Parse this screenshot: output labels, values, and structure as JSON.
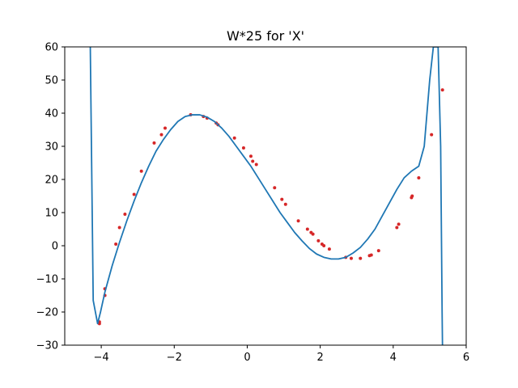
{
  "chart_data": {
    "type": "scatter",
    "title": "W*25 for 'X'",
    "xlabel": "",
    "ylabel": "",
    "xlim": [
      -5,
      6
    ],
    "ylim": [
      -30,
      60
    ],
    "xticks": [
      -4,
      -2,
      0,
      2,
      4,
      6
    ],
    "yticks": [
      -30,
      -20,
      -10,
      0,
      10,
      20,
      30,
      40,
      50,
      60
    ],
    "xtick_labels": [
      "−4",
      "−2",
      "0",
      "2",
      "4",
      "6"
    ],
    "ytick_labels": [
      "−30",
      "−20",
      "−10",
      "0",
      "10",
      "20",
      "30",
      "40",
      "50",
      "60"
    ],
    "grid": false,
    "legend": null,
    "series": [
      {
        "kind": "points",
        "color": "#d62728",
        "x": [
          -4.05,
          -4.05,
          -3.9,
          -3.9,
          -3.6,
          -3.5,
          -3.35,
          -3.1,
          -2.9,
          -2.55,
          -2.35,
          -2.25,
          -1.55,
          -1.2,
          -1.1,
          -0.85,
          -0.8,
          -0.35,
          -0.1,
          0.1,
          0.15,
          0.25,
          0.75,
          0.95,
          1.05,
          1.4,
          1.65,
          1.75,
          1.8,
          1.95,
          2.05,
          2.1,
          2.25,
          2.7,
          2.85,
          3.1,
          3.35,
          3.4,
          3.6,
          4.1,
          4.15,
          4.5,
          4.52,
          4.7,
          5.05,
          5.35
        ],
        "y": [
          -23,
          -23.5,
          -13,
          -15,
          0.5,
          5.5,
          9.5,
          15.5,
          22.5,
          31,
          33.5,
          35.5,
          39.5,
          39,
          38.5,
          37,
          36.5,
          32.5,
          29.5,
          27,
          25.5,
          24.5,
          17.5,
          14,
          12.5,
          7.5,
          5,
          4,
          3.5,
          1.5,
          0.5,
          0,
          -1,
          -3.5,
          -3.8,
          -3.8,
          -3,
          -2.8,
          -1.5,
          5.5,
          6.5,
          14.5,
          15,
          20.5,
          33.5,
          47
        ]
      },
      {
        "kind": "line",
        "color": "#1f77b4",
        "x": [
          -4.3,
          -4.22,
          -4.1,
          -4.02,
          -3.9,
          -3.7,
          -3.5,
          -3.3,
          -3.1,
          -2.9,
          -2.7,
          -2.5,
          -2.3,
          -2.1,
          -1.9,
          -1.7,
          -1.5,
          -1.3,
          -1.1,
          -0.9,
          -0.7,
          -0.5,
          -0.3,
          -0.1,
          0.1,
          0.3,
          0.5,
          0.7,
          0.9,
          1.1,
          1.3,
          1.5,
          1.7,
          1.9,
          2.1,
          2.3,
          2.5,
          2.7,
          2.9,
          3.1,
          3.3,
          3.5,
          3.7,
          3.9,
          4.1,
          4.3,
          4.5,
          4.7,
          4.85,
          5.0,
          5.1,
          5.18,
          5.23,
          5.3,
          5.34,
          5.35
        ],
        "y": [
          60,
          -16.5,
          -23.5,
          -20,
          -14,
          -6,
          1,
          7.5,
          13.5,
          19,
          24,
          28.5,
          32,
          35,
          37.5,
          39,
          39.5,
          39.5,
          38.8,
          37.5,
          35.5,
          33,
          30,
          27,
          24,
          20.5,
          17,
          13.5,
          10,
          7,
          4,
          1.5,
          -0.8,
          -2.5,
          -3.5,
          -4,
          -4,
          -3.5,
          -2.2,
          -0.5,
          2,
          5,
          9,
          13,
          17,
          20.5,
          22.5,
          24,
          30,
          50,
          60,
          60,
          60,
          30,
          -20,
          -30
        ]
      }
    ]
  }
}
